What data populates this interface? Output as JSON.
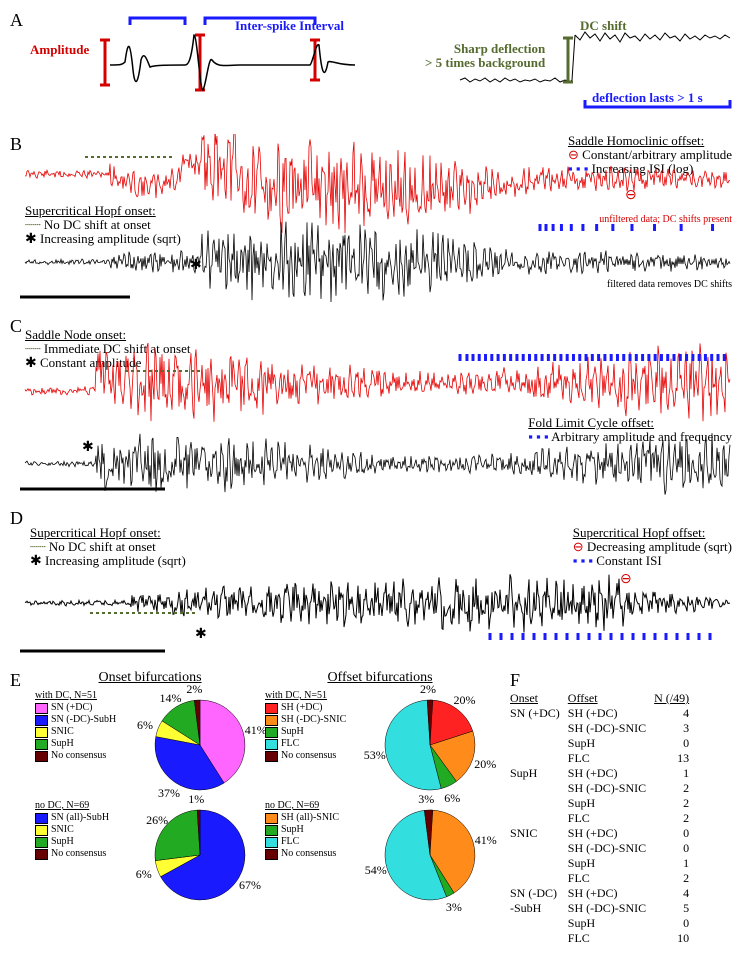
{
  "panelA": {
    "label": "A",
    "amplitude_label": "Amplitude",
    "isi_label": "Inter-spike Interval",
    "dc_shift_label": "DC shift",
    "sharp_deflection_l1": "Sharp deflection",
    "sharp_deflection_l2": "> 5 times background",
    "deflection_lasts": "deflection lasts > 1 s",
    "colors": {
      "red": "#d40000",
      "blue": "#1a1aff",
      "olive": "#556b2f",
      "black": "#000000"
    }
  },
  "panelB": {
    "label": "B",
    "onset_title": "Supercritical Hopf onset:",
    "onset_l1": "No DC shift at onset",
    "onset_l2": "Increasing amplitude (sqrt)",
    "offset_title": "Saddle Homoclinic offset:",
    "offset_l1": "Constant/arbitrary amplitude",
    "offset_l2": "Increasing ISI (log)",
    "unfiltered_note": "unfiltered data; DC shifts present",
    "filtered_note": "filtered data removes DC shifts",
    "colors": {
      "topTrace": "#e50000",
      "bottomTrace": "#000000"
    }
  },
  "panelC": {
    "label": "C",
    "onset_title": "Saddle Node onset:",
    "onset_l1": "Immediate DC shift at onset",
    "onset_l2": "Constant amplitude",
    "offset_title": "Fold Limit Cycle offset:",
    "offset_l1": "Arbitrary amplitude and frequency",
    "colors": {
      "topTrace": "#e50000",
      "bottomTrace": "#000000"
    }
  },
  "panelD": {
    "label": "D",
    "onset_title": "Supercritical Hopf onset:",
    "onset_l1": "No DC shift at onset",
    "onset_l2": "Increasing amplitude (sqrt)",
    "offset_title": "Supercritical Hopf offset:",
    "offset_l1": "Decreasing amplitude (sqrt)",
    "offset_l2": "Constant ISI"
  },
  "panelE": {
    "label": "E",
    "onset_title": "Onset bifurcations",
    "offset_title": "Offset bifurcations",
    "colors": {
      "magenta": "#ff66ff",
      "blue": "#1a1aff",
      "yellow": "#ffff33",
      "green": "#22aa22",
      "maroon": "#660000",
      "red": "#ff2222",
      "orange": "#ff8c1a",
      "cyan": "#33dede"
    },
    "onsetDC": {
      "legend_title": "with DC, N=51",
      "items": [
        {
          "label": "SN (+DC)",
          "color": "magenta",
          "pct": 41
        },
        {
          "label": "SN (-DC)-SubH",
          "color": "blue",
          "pct": 37
        },
        {
          "label": "SNIC",
          "color": "yellow",
          "pct": 6
        },
        {
          "label": "SupH",
          "color": "green",
          "pct": 14
        },
        {
          "label": "No consensus",
          "color": "maroon",
          "pct": 2
        }
      ]
    },
    "onsetNoDC": {
      "legend_title": "no DC, N=69",
      "items": [
        {
          "label": "SN (all)-SubH",
          "color": "blue",
          "pct": 67
        },
        {
          "label": "SNIC",
          "color": "yellow",
          "pct": 6
        },
        {
          "label": "SupH",
          "color": "green",
          "pct": 26
        },
        {
          "label": "No consensus",
          "color": "maroon",
          "pct": 1
        }
      ]
    },
    "offsetDC": {
      "legend_title": "with DC, N=51",
      "items": [
        {
          "label": "SH (+DC)",
          "color": "red",
          "pct": 20
        },
        {
          "label": "SH (-DC)-SNIC",
          "color": "orange",
          "pct": 20
        },
        {
          "label": "SupH",
          "color": "green",
          "pct": 6
        },
        {
          "label": "FLC",
          "color": "cyan",
          "pct": 53
        },
        {
          "label": "No consensus",
          "color": "maroon",
          "pct": 2
        }
      ]
    },
    "offsetNoDC": {
      "legend_title": "no DC, N=69",
      "items": [
        {
          "label": "SH (all)-SNIC",
          "color": "orange",
          "pct": 41
        },
        {
          "label": "SupH",
          "color": "green",
          "pct": 3
        },
        {
          "label": "FLC",
          "color": "cyan",
          "pct": 54
        },
        {
          "label": "No consensus",
          "color": "maroon",
          "pct": 3
        }
      ]
    }
  },
  "panelF": {
    "label": "F",
    "headers": [
      "Onset",
      "Offset",
      "N (/49)"
    ],
    "rows": [
      [
        "SN (+DC)",
        "SH (+DC)",
        "4"
      ],
      [
        "",
        "SH (-DC)-SNIC",
        "3"
      ],
      [
        "",
        "SupH",
        "0"
      ],
      [
        "",
        "FLC",
        "13"
      ],
      [
        "SupH",
        "SH (+DC)",
        "1"
      ],
      [
        "",
        "SH (-DC)-SNIC",
        "2"
      ],
      [
        "",
        "SupH",
        "2"
      ],
      [
        "",
        "FLC",
        "2"
      ],
      [
        "SNIC",
        "SH (+DC)",
        "0"
      ],
      [
        "",
        "SH (-DC)-SNIC",
        "0"
      ],
      [
        "",
        "SupH",
        "1"
      ],
      [
        "",
        "FLC",
        "2"
      ],
      [
        "SN (-DC)",
        "SH (+DC)",
        "4"
      ],
      [
        "-SubH",
        "SH (-DC)-SNIC",
        "5"
      ],
      [
        "",
        "SupH",
        "0"
      ],
      [
        "",
        "FLC",
        "10"
      ]
    ]
  }
}
